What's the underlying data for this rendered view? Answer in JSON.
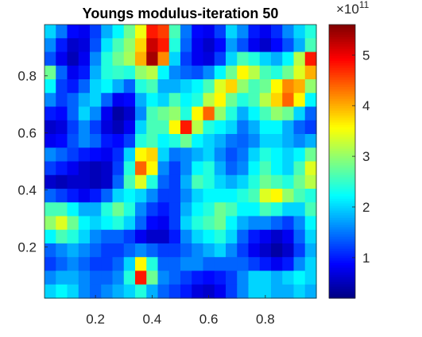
{
  "chart_data": {
    "type": "heatmap",
    "title": "Youngs modulus-iteration 50",
    "xlabel": "",
    "ylabel": "",
    "xlim": [
      0.02,
      0.98
    ],
    "ylim": [
      0.02,
      0.98
    ],
    "x_ticks": [
      0.2,
      0.4,
      0.6,
      0.8
    ],
    "y_ticks": [
      0.2,
      0.4,
      0.6,
      0.8
    ],
    "x_tick_labels": [
      "0.2",
      "0.4",
      "0.6",
      "0.8"
    ],
    "y_tick_labels": [
      "0.2",
      "0.4",
      "0.6",
      "0.8"
    ],
    "colormap": "jet",
    "colorbar": {
      "range": [
        0.2,
        5.6
      ],
      "ticks": [
        1,
        2,
        3,
        4,
        5
      ],
      "tick_labels": [
        "1",
        "2",
        "3",
        "4",
        "5"
      ],
      "exponent_base": "×10",
      "exponent_power": "11"
    },
    "value_unit_note": "values in units of 1e11",
    "grid": {
      "rows_top_to_bottom": true,
      "values": [
        [
          2.0,
          1.5,
          0.9,
          0.8,
          1.2,
          1.8,
          2.2,
          2.8,
          3.5,
          4.8,
          4.6,
          2.6,
          1.5,
          0.9,
          0.8,
          1.2,
          2.0,
          1.6,
          1.0,
          0.8,
          1.1,
          1.6,
          2.0,
          2.4
        ],
        [
          1.6,
          1.0,
          0.6,
          0.7,
          1.3,
          2.1,
          2.6,
          3.0,
          3.8,
          5.2,
          4.8,
          2.4,
          1.4,
          0.8,
          0.6,
          0.9,
          1.7,
          1.3,
          0.8,
          0.6,
          0.9,
          1.3,
          1.8,
          2.6
        ],
        [
          1.3,
          0.8,
          0.5,
          0.8,
          1.6,
          2.4,
          2.8,
          3.1,
          4.0,
          5.4,
          4.2,
          2.0,
          1.2,
          0.8,
          0.7,
          1.2,
          2.0,
          2.6,
          2.4,
          2.0,
          1.8,
          2.2,
          3.2,
          4.8
        ],
        [
          2.8,
          1.4,
          0.8,
          1.0,
          1.8,
          2.4,
          2.5,
          2.4,
          3.0,
          3.2,
          2.2,
          1.6,
          1.4,
          1.3,
          1.6,
          2.2,
          2.8,
          3.6,
          3.2,
          2.6,
          2.4,
          2.8,
          3.4,
          4.0
        ],
        [
          2.2,
          1.2,
          1.0,
          1.4,
          2.0,
          2.2,
          1.8,
          1.4,
          2.4,
          2.6,
          1.8,
          1.8,
          2.0,
          2.2,
          2.6,
          3.4,
          3.8,
          3.0,
          2.6,
          2.8,
          3.6,
          4.2,
          4.0,
          3.0
        ],
        [
          1.6,
          1.2,
          1.4,
          1.8,
          2.0,
          1.4,
          0.8,
          0.9,
          1.8,
          2.2,
          2.0,
          2.6,
          2.2,
          2.4,
          3.2,
          3.6,
          2.8,
          2.4,
          2.6,
          3.2,
          3.8,
          4.4,
          3.6,
          2.2
        ],
        [
          1.0,
          0.9,
          1.4,
          2.0,
          1.6,
          0.8,
          0.4,
          0.6,
          1.6,
          2.6,
          2.8,
          3.0,
          2.4,
          3.6,
          4.4,
          3.0,
          2.4,
          1.8,
          2.2,
          2.6,
          3.0,
          2.8,
          2.0,
          1.4
        ],
        [
          0.6,
          0.7,
          1.2,
          1.6,
          1.2,
          0.7,
          0.5,
          0.8,
          2.0,
          2.6,
          2.6,
          3.6,
          4.8,
          3.2,
          2.4,
          2.2,
          2.0,
          1.5,
          1.8,
          2.2,
          2.2,
          1.8,
          1.4,
          1.2
        ],
        [
          0.8,
          0.9,
          1.3,
          1.6,
          1.4,
          1.0,
          0.9,
          1.2,
          2.4,
          2.6,
          2.2,
          2.4,
          2.8,
          2.2,
          2.0,
          1.8,
          1.5,
          1.4,
          1.6,
          2.0,
          2.0,
          1.8,
          1.6,
          1.8
        ],
        [
          1.6,
          1.4,
          1.2,
          1.0,
          0.9,
          0.8,
          1.1,
          2.0,
          3.6,
          3.8,
          2.0,
          1.5,
          1.6,
          1.8,
          2.0,
          1.6,
          1.3,
          1.5,
          2.0,
          2.4,
          2.2,
          2.0,
          2.2,
          2.8
        ],
        [
          1.2,
          1.0,
          0.8,
          0.6,
          0.5,
          0.6,
          1.2,
          2.4,
          4.4,
          3.6,
          1.6,
          1.2,
          1.6,
          2.2,
          2.4,
          1.8,
          1.4,
          1.6,
          2.2,
          2.6,
          2.2,
          2.0,
          2.6,
          3.4
        ],
        [
          0.6,
          0.5,
          0.6,
          0.6,
          0.5,
          0.6,
          1.4,
          2.6,
          3.4,
          2.4,
          1.4,
          1.2,
          1.8,
          2.6,
          2.4,
          2.0,
          1.8,
          2.0,
          2.4,
          2.8,
          2.6,
          2.4,
          2.8,
          3.2
        ],
        [
          1.4,
          1.2,
          1.0,
          0.8,
          1.0,
          1.4,
          2.0,
          2.2,
          2.0,
          1.6,
          1.2,
          1.2,
          1.6,
          2.0,
          2.2,
          2.2,
          2.2,
          2.4,
          2.6,
          3.4,
          3.6,
          3.0,
          2.6,
          2.4
        ],
        [
          2.6,
          2.6,
          2.2,
          1.8,
          1.8,
          2.4,
          2.8,
          2.4,
          1.6,
          1.2,
          1.0,
          1.2,
          1.8,
          2.2,
          2.4,
          2.8,
          2.6,
          2.2,
          2.2,
          2.6,
          2.4,
          2.0,
          2.0,
          2.6
        ],
        [
          3.0,
          3.4,
          2.8,
          2.2,
          2.0,
          2.2,
          2.4,
          2.0,
          1.4,
          0.9,
          0.8,
          1.2,
          2.0,
          2.4,
          2.6,
          2.8,
          2.2,
          1.8,
          1.6,
          1.6,
          1.4,
          1.2,
          1.6,
          2.2
        ],
        [
          2.2,
          2.6,
          2.4,
          2.0,
          1.6,
          1.4,
          1.4,
          1.2,
          0.8,
          0.6,
          0.6,
          1.0,
          1.6,
          2.0,
          2.2,
          2.4,
          2.0,
          1.4,
          1.0,
          0.8,
          0.6,
          0.8,
          1.4,
          2.0
        ],
        [
          1.4,
          1.6,
          1.8,
          1.6,
          1.4,
          1.2,
          1.2,
          1.4,
          1.6,
          1.4,
          1.2,
          1.2,
          1.4,
          1.6,
          1.8,
          2.0,
          1.6,
          1.2,
          0.8,
          0.6,
          0.4,
          0.6,
          1.2,
          1.8
        ],
        [
          1.2,
          1.4,
          1.6,
          1.4,
          1.2,
          1.2,
          1.4,
          2.0,
          3.6,
          2.4,
          1.4,
          1.4,
          1.6,
          1.6,
          1.4,
          1.4,
          1.4,
          1.4,
          1.2,
          1.0,
          0.8,
          1.0,
          1.6,
          2.0
        ],
        [
          1.6,
          1.8,
          1.8,
          1.6,
          1.4,
          1.4,
          1.6,
          2.4,
          4.8,
          2.8,
          1.6,
          1.4,
          1.2,
          1.0,
          0.9,
          1.0,
          1.2,
          1.6,
          2.0,
          2.0,
          1.8,
          2.0,
          2.2,
          2.0
        ],
        [
          2.0,
          2.2,
          2.0,
          1.6,
          1.4,
          1.6,
          1.8,
          2.0,
          2.4,
          1.8,
          1.4,
          1.2,
          1.0,
          0.7,
          0.6,
          0.8,
          1.2,
          1.6,
          2.0,
          2.0,
          1.8,
          1.8,
          2.0,
          1.8
        ]
      ]
    }
  }
}
